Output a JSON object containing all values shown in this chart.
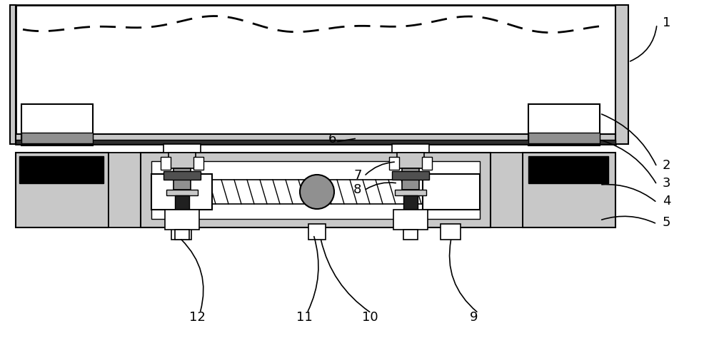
{
  "bg_color": "#ffffff",
  "gray_light": "#c8c8c8",
  "gray_med": "#909090",
  "gray_dark": "#505050",
  "figsize": [
    10.0,
    4.89
  ],
  "dpi": 100
}
